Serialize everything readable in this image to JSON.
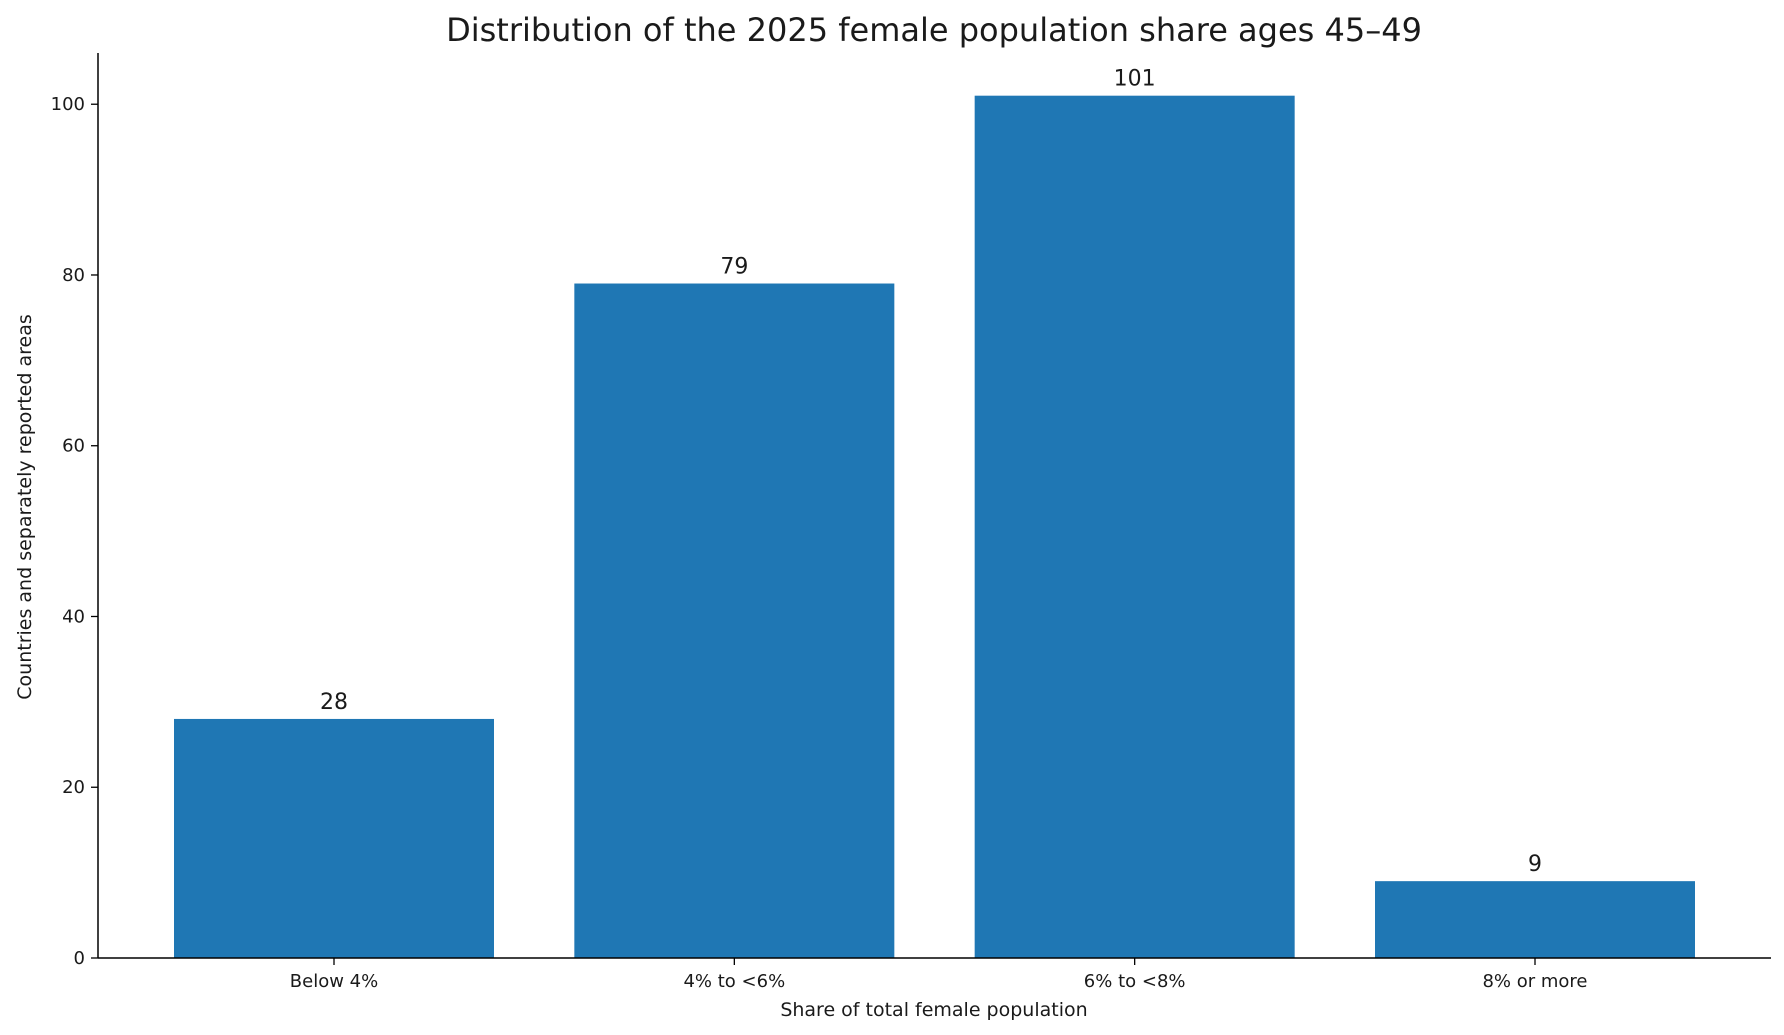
{
  "chart_data": {
    "type": "bar",
    "title": "Distribution of the 2025 female population share ages 45–49",
    "xlabel": "Share of total female population",
    "ylabel": "Countries and separately reported areas",
    "categories": [
      "Below 4%",
      "4% to <6%",
      "6% to <8%",
      "8% or more"
    ],
    "values": [
      28,
      79,
      101,
      9
    ],
    "data_labels": [
      "28",
      "79",
      "101",
      "9"
    ],
    "ylim": [
      0,
      106
    ],
    "yticks": [
      0,
      20,
      40,
      60,
      80,
      100
    ],
    "ytick_labels": [
      "0",
      "20",
      "40",
      "60",
      "80",
      "100"
    ],
    "grid": false,
    "legend": "none",
    "bar_color": "#1f77b4"
  }
}
